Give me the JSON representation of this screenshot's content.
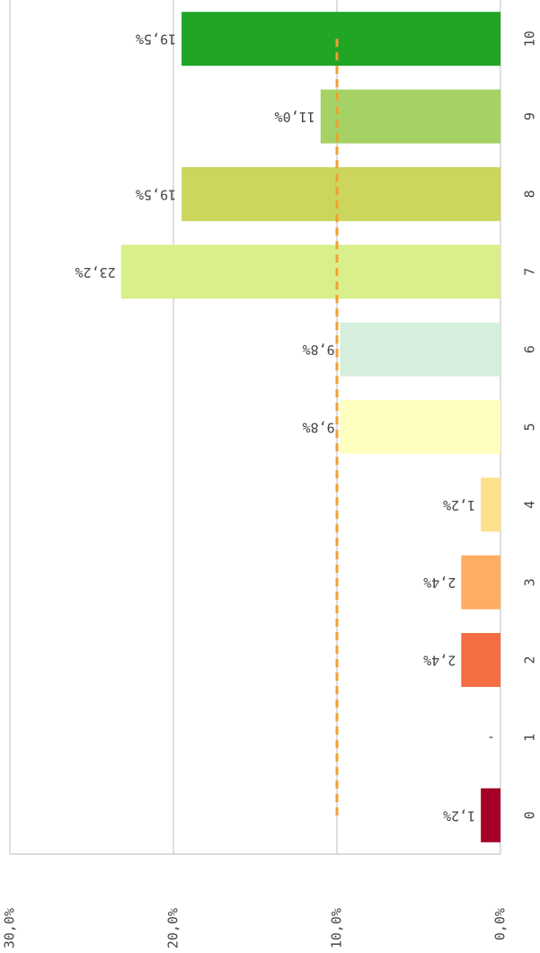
{
  "chart_data": {
    "type": "bar",
    "orientation": "horizontal",
    "categories": [
      "0",
      "1",
      "2",
      "3",
      "4",
      "5",
      "6",
      "7",
      "8",
      "9",
      "10"
    ],
    "values": [
      1.2,
      null,
      2.4,
      2.4,
      1.2,
      9.8,
      9.8,
      23.2,
      19.5,
      11.0,
      19.5
    ],
    "value_labels": [
      "1,2%",
      "-",
      "2,4%",
      "2,4%",
      "1,2%",
      "9,8%",
      "9,8%",
      "23,2%",
      "19,5%",
      "11,0%",
      "19,5%"
    ],
    "colors": [
      "#a50026",
      "#d73027",
      "#f46d43",
      "#fdae61",
      "#fee08b",
      "#ffffbf",
      "#d6efdc",
      "#d9ef8b",
      "#ccd65c",
      "#a6d265",
      "#20a525"
    ],
    "xlim": [
      0,
      30
    ],
    "xticks": [
      {
        "value": 0,
        "label": "0,0%"
      },
      {
        "value": 10,
        "label": "10,0%"
      },
      {
        "value": 20,
        "label": "20,0%"
      },
      {
        "value": 30,
        "label": "30,0%"
      }
    ],
    "reference_line": 10,
    "reference_color": "#f0a030",
    "grid": true
  }
}
